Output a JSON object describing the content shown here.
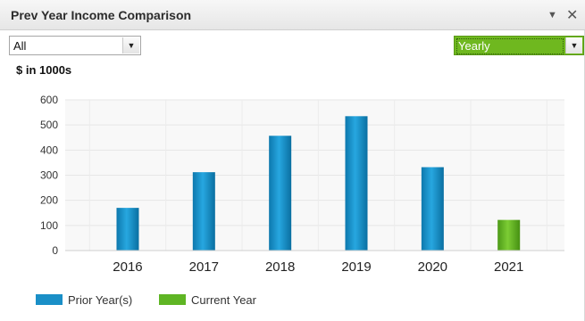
{
  "widget": {
    "title": "Prev Year Income Comparison",
    "filter_value": "All",
    "period_value": "Yearly",
    "units_label": "$ in 1000s",
    "icons": [
      "chevron-down-icon",
      "close-icon"
    ]
  },
  "chart_data": {
    "type": "bar",
    "categories": [
      "2016",
      "2017",
      "2018",
      "2019",
      "2020",
      "2021"
    ],
    "values": [
      170,
      312,
      457,
      535,
      332,
      122
    ],
    "series_membership": [
      "Prior Year(s)",
      "Prior Year(s)",
      "Prior Year(s)",
      "Prior Year(s)",
      "Prior Year(s)",
      "Current Year"
    ],
    "legend": [
      {
        "name": "Prior Year(s)",
        "color": "#1a8fc7"
      },
      {
        "name": "Current Year",
        "color": "#5fb524"
      }
    ],
    "ylim": [
      0,
      600
    ],
    "yticks": [
      0,
      100,
      200,
      300,
      400,
      500,
      600
    ],
    "grid": true,
    "legend_position": "bottom-left"
  }
}
